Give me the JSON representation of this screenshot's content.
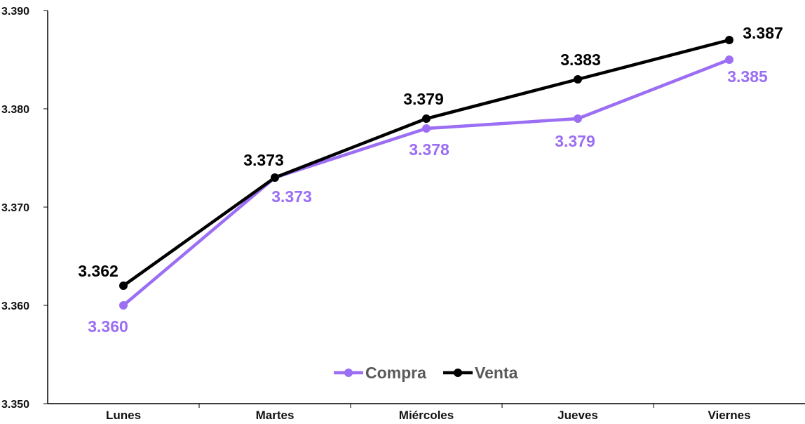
{
  "chart_data": {
    "type": "line",
    "categories": [
      "Lunes",
      "Martes",
      "Miércoles",
      "Jueves",
      "Viernes"
    ],
    "ylim": [
      3.35,
      3.39
    ],
    "yticks": [
      "3.350",
      "3.360",
      "3.370",
      "3.380",
      "3.390"
    ],
    "series": [
      {
        "name": "Compra",
        "color": "#9b6ef3",
        "values": [
          3.36,
          3.373,
          3.378,
          3.379,
          3.385
        ],
        "labels": [
          "3.360",
          "3.373",
          "3.378",
          "3.379",
          "3.385"
        ]
      },
      {
        "name": "Venta",
        "color": "#000000",
        "values": [
          3.362,
          3.373,
          3.379,
          3.383,
          3.387
        ],
        "labels": [
          "3.362",
          "3.373",
          "3.379",
          "3.383",
          "3.387"
        ]
      }
    ],
    "legend_position": "bottom-center",
    "grid": false
  }
}
